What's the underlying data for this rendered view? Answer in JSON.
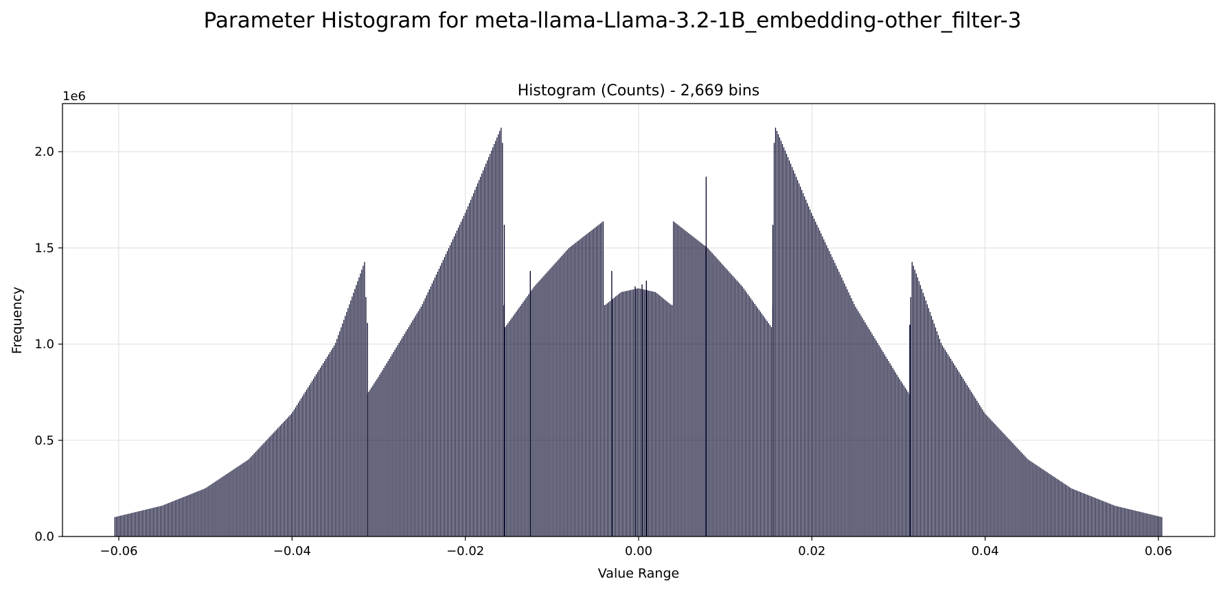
{
  "figure": {
    "suptitle": "Parameter Histogram for meta-llama-Llama-3.2-1B_embedding-other_filter-3"
  },
  "chart_data": {
    "type": "bar",
    "title": "Histogram (Counts) - 2,669 bins",
    "xlabel": "Value Range",
    "ylabel": "Frequency",
    "y_multiplier_label": "1e6",
    "xlim": [
      -0.0665,
      0.0665
    ],
    "ylim": [
      0,
      2250000
    ],
    "grid": true,
    "bins": 2669,
    "bar_color": "#0a0a2e",
    "bar_edge_color": "#ffffff",
    "x_ticks": [
      {
        "value": -0.06,
        "label": "−0.06"
      },
      {
        "value": -0.04,
        "label": "−0.04"
      },
      {
        "value": -0.02,
        "label": "−0.02"
      },
      {
        "value": 0.0,
        "label": "0.00"
      },
      {
        "value": 0.02,
        "label": "0.02"
      },
      {
        "value": 0.04,
        "label": "0.04"
      },
      {
        "value": 0.06,
        "label": "0.06"
      }
    ],
    "y_ticks": [
      {
        "value": 0,
        "label": "0.0"
      },
      {
        "value": 500000,
        "label": "0.5"
      },
      {
        "value": 1000000,
        "label": "1.0"
      },
      {
        "value": 1500000,
        "label": "1.5"
      },
      {
        "value": 2000000,
        "label": "2.0"
      }
    ],
    "envelope": {
      "x": [
        -0.0605,
        -0.055,
        -0.05,
        -0.045,
        -0.04,
        -0.035,
        -0.0315,
        -0.0313,
        -0.03,
        -0.025,
        -0.02,
        -0.0157,
        -0.0155,
        -0.012,
        -0.008,
        -0.004,
        -0.0039,
        -0.002,
        0.0,
        0.002,
        0.0039,
        0.004,
        0.008,
        0.012,
        0.0155,
        0.0157,
        0.02,
        0.025,
        0.03,
        0.0313,
        0.0315,
        0.035,
        0.04,
        0.045,
        0.05,
        0.055,
        0.0605
      ],
      "y": [
        100000,
        160000,
        250000,
        400000,
        640000,
        1000000,
        1440000,
        740000,
        830000,
        1200000,
        1680000,
        2140000,
        1080000,
        1300000,
        1500000,
        1640000,
        1200000,
        1270000,
        1290000,
        1270000,
        1200000,
        1640000,
        1500000,
        1300000,
        1080000,
        2140000,
        1680000,
        1200000,
        830000,
        740000,
        1440000,
        1000000,
        640000,
        400000,
        250000,
        160000,
        100000
      ]
    },
    "spikes": [
      {
        "x": -0.0125,
        "y": 1380000
      },
      {
        "x": -0.0031,
        "y": 1380000
      },
      {
        "x": -0.0004,
        "y": 1300000
      },
      {
        "x": 0.0004,
        "y": 1310000
      },
      {
        "x": 0.0009,
        "y": 1330000
      },
      {
        "x": 0.0078,
        "y": 1870000
      },
      {
        "x": 0.0155,
        "y": 1620000
      },
      {
        "x": -0.0155,
        "y": 1620000
      },
      {
        "x": -0.0313,
        "y": 1110000
      },
      {
        "x": 0.0313,
        "y": 1100000
      }
    ]
  }
}
